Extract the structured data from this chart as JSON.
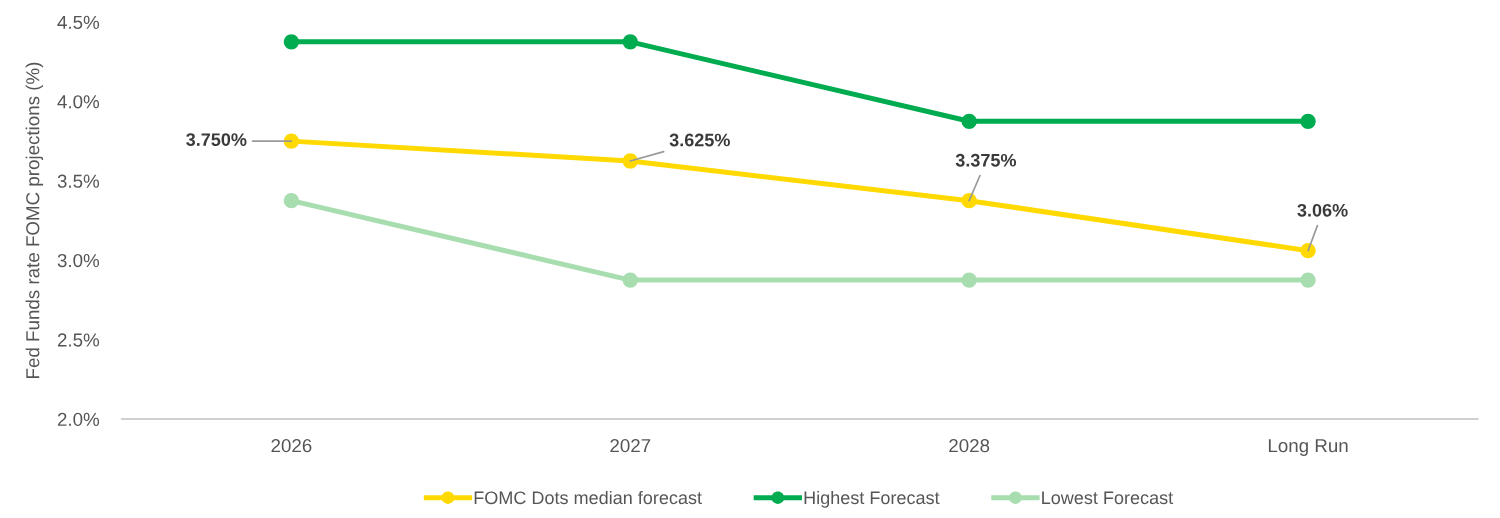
{
  "chart_data": {
    "type": "line",
    "ylabel": "Fed Funds rate FOMC projections (%)",
    "categories": [
      "2026",
      "2027",
      "2028",
      "Long Run"
    ],
    "series": [
      {
        "name": "FOMC Dots median forecast",
        "color": "#ffd900",
        "values": [
          3.75,
          3.625,
          3.375,
          3.06
        ],
        "value_labels": [
          "3.750%",
          "3.625%",
          "3.375%",
          "3.06%"
        ]
      },
      {
        "name": "Highest Forecast",
        "color": "#00ac4f",
        "values": [
          4.375,
          4.375,
          3.875,
          3.875
        ]
      },
      {
        "name": "Lowest Forecast",
        "color": "#a8ddb0",
        "values": [
          3.375,
          2.875,
          2.875,
          2.875
        ]
      }
    ],
    "ylim": [
      2.0,
      4.5
    ],
    "yticks": [
      {
        "value": 2.0,
        "label": "2.0%"
      },
      {
        "value": 2.5,
        "label": "2.5%"
      },
      {
        "value": 3.0,
        "label": "3.0%"
      },
      {
        "value": 3.5,
        "label": "3.5%"
      },
      {
        "value": 4.0,
        "label": "4.0%"
      },
      {
        "value": 4.5,
        "label": "4.5%"
      }
    ],
    "grid": false,
    "legend": "bottom",
    "marker": "circle",
    "line_style": "solid"
  }
}
